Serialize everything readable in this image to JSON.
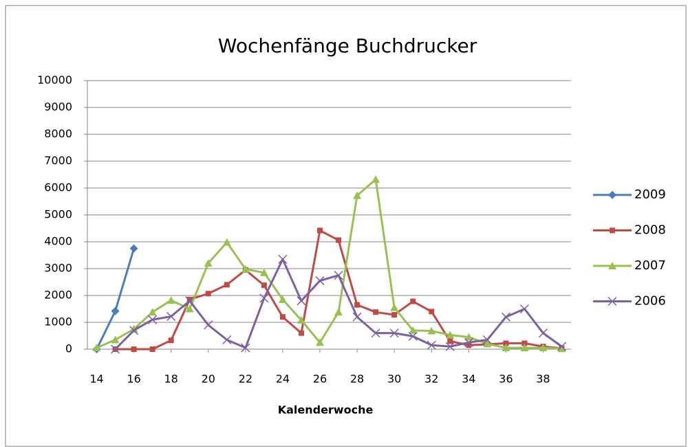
{
  "chart_data": {
    "type": "line",
    "title": "Wochenfänge Buchdrucker",
    "x_label": "Kalenderwoche",
    "x": [
      14,
      15,
      16,
      17,
      18,
      19,
      20,
      21,
      22,
      23,
      24,
      25,
      26,
      27,
      28,
      29,
      30,
      31,
      32,
      33,
      34,
      35,
      36,
      37,
      38,
      39
    ],
    "xlim": [
      13.5,
      39.5
    ],
    "xticks": [
      14,
      16,
      18,
      20,
      22,
      24,
      26,
      28,
      30,
      32,
      34,
      36,
      38
    ],
    "ylim": [
      0,
      10000
    ],
    "yticks": [
      0,
      1000,
      2000,
      3000,
      4000,
      5000,
      6000,
      7000,
      8000,
      9000,
      10000
    ],
    "grid": true,
    "legend": "right",
    "series": [
      {
        "name": "2009",
        "color": "#4a7ebb",
        "marker": "diamond",
        "values": [
          0,
          1420,
          3750,
          null,
          null,
          null,
          null,
          null,
          null,
          null,
          null,
          null,
          null,
          null,
          null,
          null,
          null,
          null,
          null,
          null,
          null,
          null,
          null,
          null,
          null,
          null
        ]
      },
      {
        "name": "2008",
        "color": "#be4b48",
        "marker": "square",
        "values": [
          null,
          0,
          0,
          0,
          330,
          1850,
          2070,
          2400,
          2950,
          2380,
          1200,
          600,
          4420,
          4060,
          1650,
          1380,
          1280,
          1780,
          1400,
          300,
          150,
          180,
          220,
          220,
          100,
          30
        ]
      },
      {
        "name": "2007",
        "color": "#98c152",
        "marker": "triangle",
        "values": [
          50,
          350,
          750,
          1380,
          1820,
          1500,
          3200,
          3980,
          2980,
          2850,
          1850,
          1080,
          250,
          1380,
          5720,
          6320,
          1550,
          700,
          680,
          530,
          450,
          200,
          50,
          50,
          50,
          20
        ]
      },
      {
        "name": "2006",
        "color": "#7d60a0",
        "marker": "x",
        "values": [
          null,
          0,
          700,
          1100,
          1220,
          1800,
          900,
          350,
          50,
          1900,
          3350,
          1800,
          2550,
          2750,
          1200,
          600,
          600,
          480,
          150,
          100,
          250,
          350,
          1200,
          1500,
          600,
          100
        ]
      }
    ]
  }
}
